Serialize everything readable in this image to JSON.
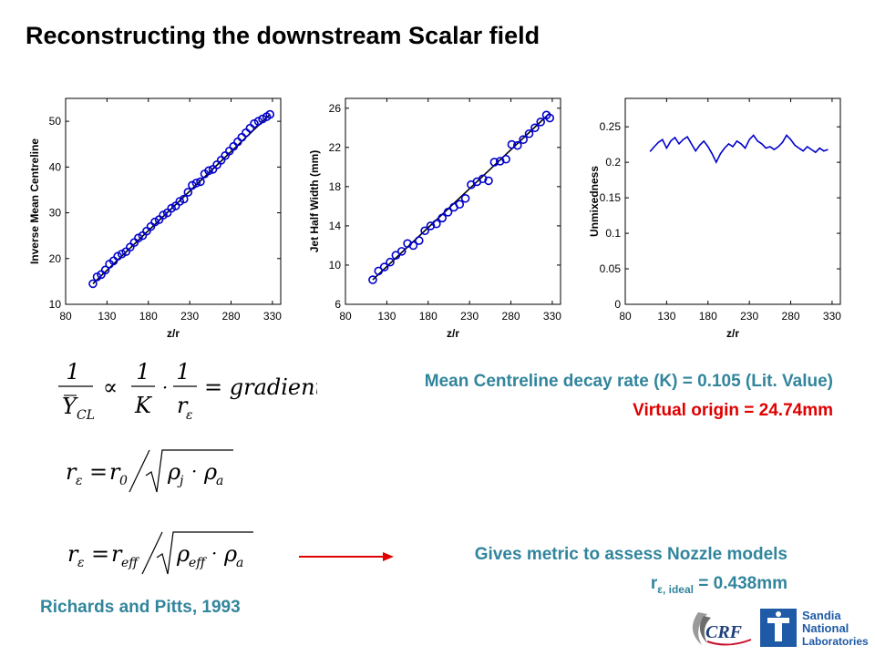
{
  "slide": {
    "title": "Reconstructing the downstream Scalar field",
    "decay_text": "Mean Centreline decay rate (K) = 0.105 (Lit. Value)",
    "origin_text": "Virtual origin = 24.74mm",
    "metric_text": "Gives metric to assess Nozzle models",
    "r_ideal": {
      "base": "r",
      "sub": "ε, ideal",
      "value": " = 0.438mm"
    },
    "citation": "Richards and Pitts, 1993",
    "colors": {
      "title": "#000000",
      "teal": "#31859C",
      "red": "#E00000",
      "arrow": "#E00000",
      "plot_line": "#0000CC"
    },
    "equations": {
      "eq1": {
        "lhs_num": "1",
        "lhs_den_var": "Y",
        "lhs_den_sub": "CL",
        "prop": "∝",
        "k_num": "1",
        "k_den": "K",
        "r_num": "1",
        "r_den": "r",
        "r_sub": "ε",
        "rhs": "= gradient"
      },
      "eq2": {
        "lhs": "r",
        "lhs_sub": "ε",
        "eq": "=",
        "r0": "r",
        "r0_sub": "0",
        "rho1": "ρ",
        "rho1_sub": "j",
        "dot": "·",
        "rho2": "ρ",
        "rho2_sub": "a"
      },
      "eq3": {
        "lhs": "r",
        "lhs_sub": "ε",
        "eq": "=",
        "reff": "r",
        "reff_sub": "eff",
        "rho1": "ρ",
        "rho1_sub": "eff",
        "dot": "·",
        "rho2": "ρ",
        "rho2_sub": "a"
      }
    },
    "logos": {
      "crf": "CRF",
      "sandia_line1": "Sandia",
      "sandia_line2": "National",
      "sandia_line3": "Laboratories"
    }
  },
  "chart_data": [
    {
      "type": "scatter",
      "title": "",
      "xlabel": "z/r",
      "ylabel": "Inverse Mean Centreline",
      "xlim": [
        80,
        340
      ],
      "ylim": [
        10,
        55
      ],
      "xticks": [
        80,
        130,
        180,
        230,
        280,
        330
      ],
      "yticks": [
        10,
        20,
        30,
        40,
        50
      ],
      "fit_line": {
        "x": [
          113,
          327
        ],
        "y": [
          14.5,
          51.5
        ]
      },
      "series": [
        {
          "x": [
            113,
            118,
            123,
            128,
            133,
            138,
            143,
            148,
            153,
            158,
            163,
            168,
            173,
            178,
            183,
            188,
            193,
            198,
            203,
            208,
            213,
            218,
            223,
            228,
            233,
            238,
            243,
            248,
            253,
            258,
            263,
            268,
            273,
            278,
            283,
            288,
            293,
            298,
            303,
            308,
            313,
            318,
            323,
            327
          ],
          "y": [
            14.5,
            16.0,
            16.5,
            17.5,
            18.8,
            19.5,
            20.5,
            21.0,
            21.5,
            22.5,
            23.5,
            24.5,
            25.0,
            26.0,
            27.0,
            28.0,
            28.5,
            29.5,
            30.0,
            31.0,
            31.5,
            32.5,
            33.0,
            34.5,
            36.0,
            36.5,
            36.8,
            38.5,
            39.2,
            39.5,
            40.5,
            41.5,
            42.5,
            43.5,
            44.5,
            45.5,
            46.5,
            47.5,
            48.5,
            49.5,
            50.0,
            50.5,
            51.0,
            51.5
          ]
        }
      ]
    },
    {
      "type": "scatter",
      "title": "",
      "xlabel": "z/r",
      "ylabel": "Jet Half Width (mm)",
      "xlim": [
        80,
        340
      ],
      "ylim": [
        6,
        27
      ],
      "xticks": [
        80,
        130,
        180,
        230,
        280,
        330
      ],
      "yticks": [
        6,
        10,
        14,
        18,
        22,
        26
      ],
      "fit_line": {
        "x": [
          113,
          327
        ],
        "y": [
          8.5,
          25.5
        ]
      },
      "series": [
        {
          "x": [
            113,
            120,
            127,
            134,
            141,
            148,
            155,
            162,
            169,
            176,
            183,
            190,
            197,
            204,
            211,
            218,
            225,
            232,
            239,
            246,
            253,
            260,
            267,
            274,
            281,
            288,
            295,
            302,
            309,
            316,
            323,
            327
          ],
          "y": [
            8.5,
            9.4,
            9.8,
            10.3,
            11.0,
            11.4,
            12.2,
            12.0,
            12.5,
            13.5,
            14.0,
            14.2,
            14.8,
            15.4,
            15.9,
            16.2,
            16.8,
            18.2,
            18.5,
            18.8,
            18.6,
            20.5,
            20.6,
            20.8,
            22.3,
            22.2,
            22.8,
            23.4,
            24.0,
            24.6,
            25.3,
            25.0
          ]
        }
      ]
    },
    {
      "type": "line",
      "title": "",
      "xlabel": "z/r",
      "ylabel": "Unmixedness",
      "xlim": [
        80,
        340
      ],
      "ylim": [
        0,
        0.29
      ],
      "xticks": [
        80,
        130,
        180,
        230,
        280,
        330
      ],
      "yticks": [
        0,
        0.05,
        0.1,
        0.15,
        0.2,
        0.25
      ],
      "ytick_labels": [
        "0",
        "0.05",
        "0.1",
        "0.15",
        "0.2",
        "0.25"
      ],
      "series": [
        {
          "x": [
            110,
            115,
            120,
            125,
            130,
            135,
            140,
            145,
            150,
            155,
            160,
            165,
            170,
            175,
            180,
            185,
            190,
            195,
            200,
            205,
            210,
            215,
            220,
            225,
            230,
            235,
            240,
            245,
            250,
            255,
            260,
            265,
            270,
            275,
            280,
            285,
            290,
            295,
            300,
            305,
            310,
            315,
            320,
            325
          ],
          "y": [
            0.215,
            0.222,
            0.228,
            0.232,
            0.22,
            0.23,
            0.235,
            0.226,
            0.232,
            0.236,
            0.226,
            0.216,
            0.224,
            0.23,
            0.222,
            0.212,
            0.2,
            0.212,
            0.22,
            0.226,
            0.222,
            0.23,
            0.226,
            0.22,
            0.232,
            0.238,
            0.23,
            0.226,
            0.22,
            0.222,
            0.218,
            0.222,
            0.228,
            0.238,
            0.232,
            0.224,
            0.22,
            0.216,
            0.222,
            0.218,
            0.214,
            0.22,
            0.216,
            0.218
          ]
        }
      ]
    }
  ]
}
